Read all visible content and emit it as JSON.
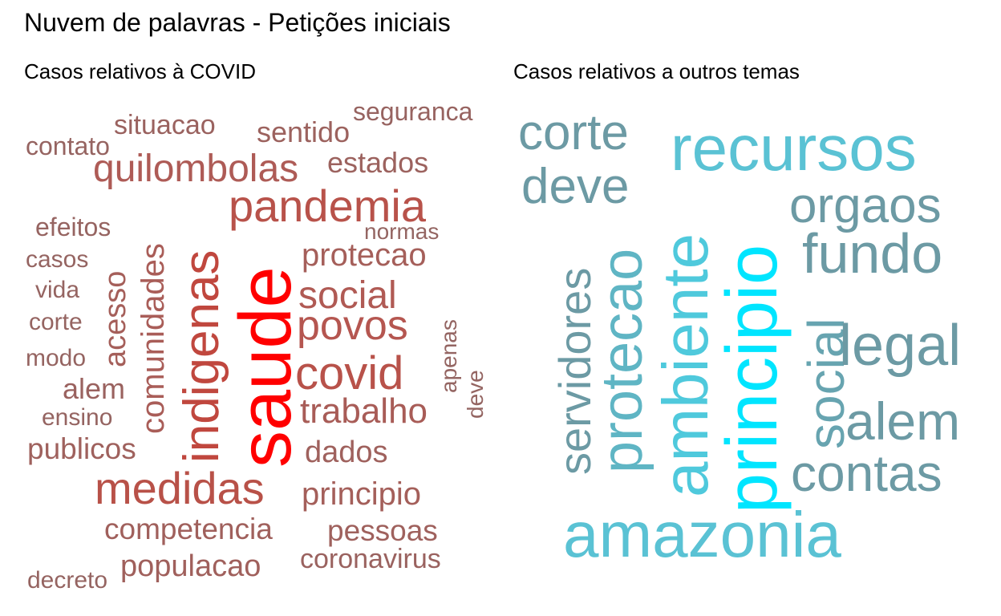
{
  "title": "Nuvem de palavras - Petições iniciais",
  "chart_data": [
    {
      "type": "wordcloud",
      "title": "Casos relativos à COVID",
      "words": [
        {
          "text": "saude",
          "weight": 10,
          "color": "#ff0000",
          "vertical": true
        },
        {
          "text": "indigenas",
          "weight": 6.5,
          "color": "#c0473e",
          "vertical": true
        },
        {
          "text": "medidas",
          "weight": 5.2,
          "color": "#b85148",
          "vertical": false
        },
        {
          "text": "pandemia",
          "weight": 5.0,
          "color": "#b8524a",
          "vertical": false
        },
        {
          "text": "covid",
          "weight": 4.8,
          "color": "#b8524a",
          "vertical": false
        },
        {
          "text": "povos",
          "weight": 4.5,
          "color": "#b55650",
          "vertical": false
        },
        {
          "text": "quilombolas",
          "weight": 4.4,
          "color": "#ae5b56",
          "vertical": false
        },
        {
          "text": "social",
          "weight": 4.2,
          "color": "#b05a54",
          "vertical": false
        },
        {
          "text": "comunidades",
          "weight": 3.9,
          "color": "#a95d58",
          "vertical": true
        },
        {
          "text": "trabalho",
          "weight": 3.8,
          "color": "#a85c57",
          "vertical": false
        },
        {
          "text": "acesso",
          "weight": 3.6,
          "color": "#a55f5a",
          "vertical": true
        },
        {
          "text": "protecao",
          "weight": 3.5,
          "color": "#a55f5a",
          "vertical": false
        },
        {
          "text": "principio",
          "weight": 3.4,
          "color": "#a45f5a",
          "vertical": false
        },
        {
          "text": "competencia",
          "weight": 3.3,
          "color": "#a0605c",
          "vertical": false
        },
        {
          "text": "populacao",
          "weight": 3.3,
          "color": "#a0605c",
          "vertical": false
        },
        {
          "text": "publicos",
          "weight": 3.2,
          "color": "#9f615d",
          "vertical": false
        },
        {
          "text": "pessoas",
          "weight": 3.2,
          "color": "#9f615d",
          "vertical": false
        },
        {
          "text": "dados",
          "weight": 3.2,
          "color": "#9f615d",
          "vertical": false
        },
        {
          "text": "estados",
          "weight": 3.1,
          "color": "#9c625e",
          "vertical": false
        },
        {
          "text": "sentido",
          "weight": 3.1,
          "color": "#9c625e",
          "vertical": false
        },
        {
          "text": "situacao",
          "weight": 3.0,
          "color": "#9a625f",
          "vertical": false
        },
        {
          "text": "coronavirus",
          "weight": 3.0,
          "color": "#9a625f",
          "vertical": false
        },
        {
          "text": "alem",
          "weight": 3.0,
          "color": "#9a625f",
          "vertical": false
        },
        {
          "text": "seguranca",
          "weight": 2.9,
          "color": "#976360",
          "vertical": false
        },
        {
          "text": "contato",
          "weight": 2.8,
          "color": "#966461",
          "vertical": false
        },
        {
          "text": "efeitos",
          "weight": 2.8,
          "color": "#966461",
          "vertical": false
        },
        {
          "text": "casos",
          "weight": 2.7,
          "color": "#956461",
          "vertical": false
        },
        {
          "text": "vida",
          "weight": 2.7,
          "color": "#956461",
          "vertical": false
        },
        {
          "text": "corte",
          "weight": 2.7,
          "color": "#956461",
          "vertical": false
        },
        {
          "text": "modo",
          "weight": 2.7,
          "color": "#956461",
          "vertical": false
        },
        {
          "text": "ensino",
          "weight": 2.7,
          "color": "#956461",
          "vertical": false
        },
        {
          "text": "decreto",
          "weight": 2.7,
          "color": "#956461",
          "vertical": false
        },
        {
          "text": "normas",
          "weight": 2.6,
          "color": "#946562",
          "vertical": false
        },
        {
          "text": "apenas",
          "weight": 2.5,
          "color": "#946562",
          "vertical": true
        },
        {
          "text": "deve",
          "weight": 2.5,
          "color": "#946562",
          "vertical": true
        }
      ]
    },
    {
      "type": "wordcloud",
      "title": "Casos relativos a outros temas",
      "words": [
        {
          "text": "principio",
          "weight": 10,
          "color": "#00e5ff",
          "vertical": true
        },
        {
          "text": "ambiente",
          "weight": 8,
          "color": "#4fc9dc",
          "vertical": true
        },
        {
          "text": "recursos",
          "weight": 7.5,
          "color": "#5ac2d4",
          "vertical": false
        },
        {
          "text": "amazonia",
          "weight": 7.5,
          "color": "#5ac2d4",
          "vertical": false
        },
        {
          "text": "protecao",
          "weight": 6.5,
          "color": "#5fb5c4",
          "vertical": true
        },
        {
          "text": "social",
          "weight": 6.0,
          "color": "#67a4b0",
          "vertical": true
        },
        {
          "text": "corte",
          "weight": 5.8,
          "color": "#6c9aa4",
          "vertical": false
        },
        {
          "text": "deve",
          "weight": 5.8,
          "color": "#6c9aa4",
          "vertical": false
        },
        {
          "text": "orgaos",
          "weight": 5.8,
          "color": "#6c9aa4",
          "vertical": false
        },
        {
          "text": "fundo",
          "weight": 5.8,
          "color": "#6c9aa4",
          "vertical": false
        },
        {
          "text": "legal",
          "weight": 5.8,
          "color": "#6c9aa4",
          "vertical": false
        },
        {
          "text": "alem",
          "weight": 5.8,
          "color": "#6c9aa4",
          "vertical": false
        },
        {
          "text": "contas",
          "weight": 5.8,
          "color": "#6c9aa4",
          "vertical": false
        },
        {
          "text": "servidores",
          "weight": 5.0,
          "color": "#6c9aa4",
          "vertical": true
        }
      ]
    }
  ]
}
